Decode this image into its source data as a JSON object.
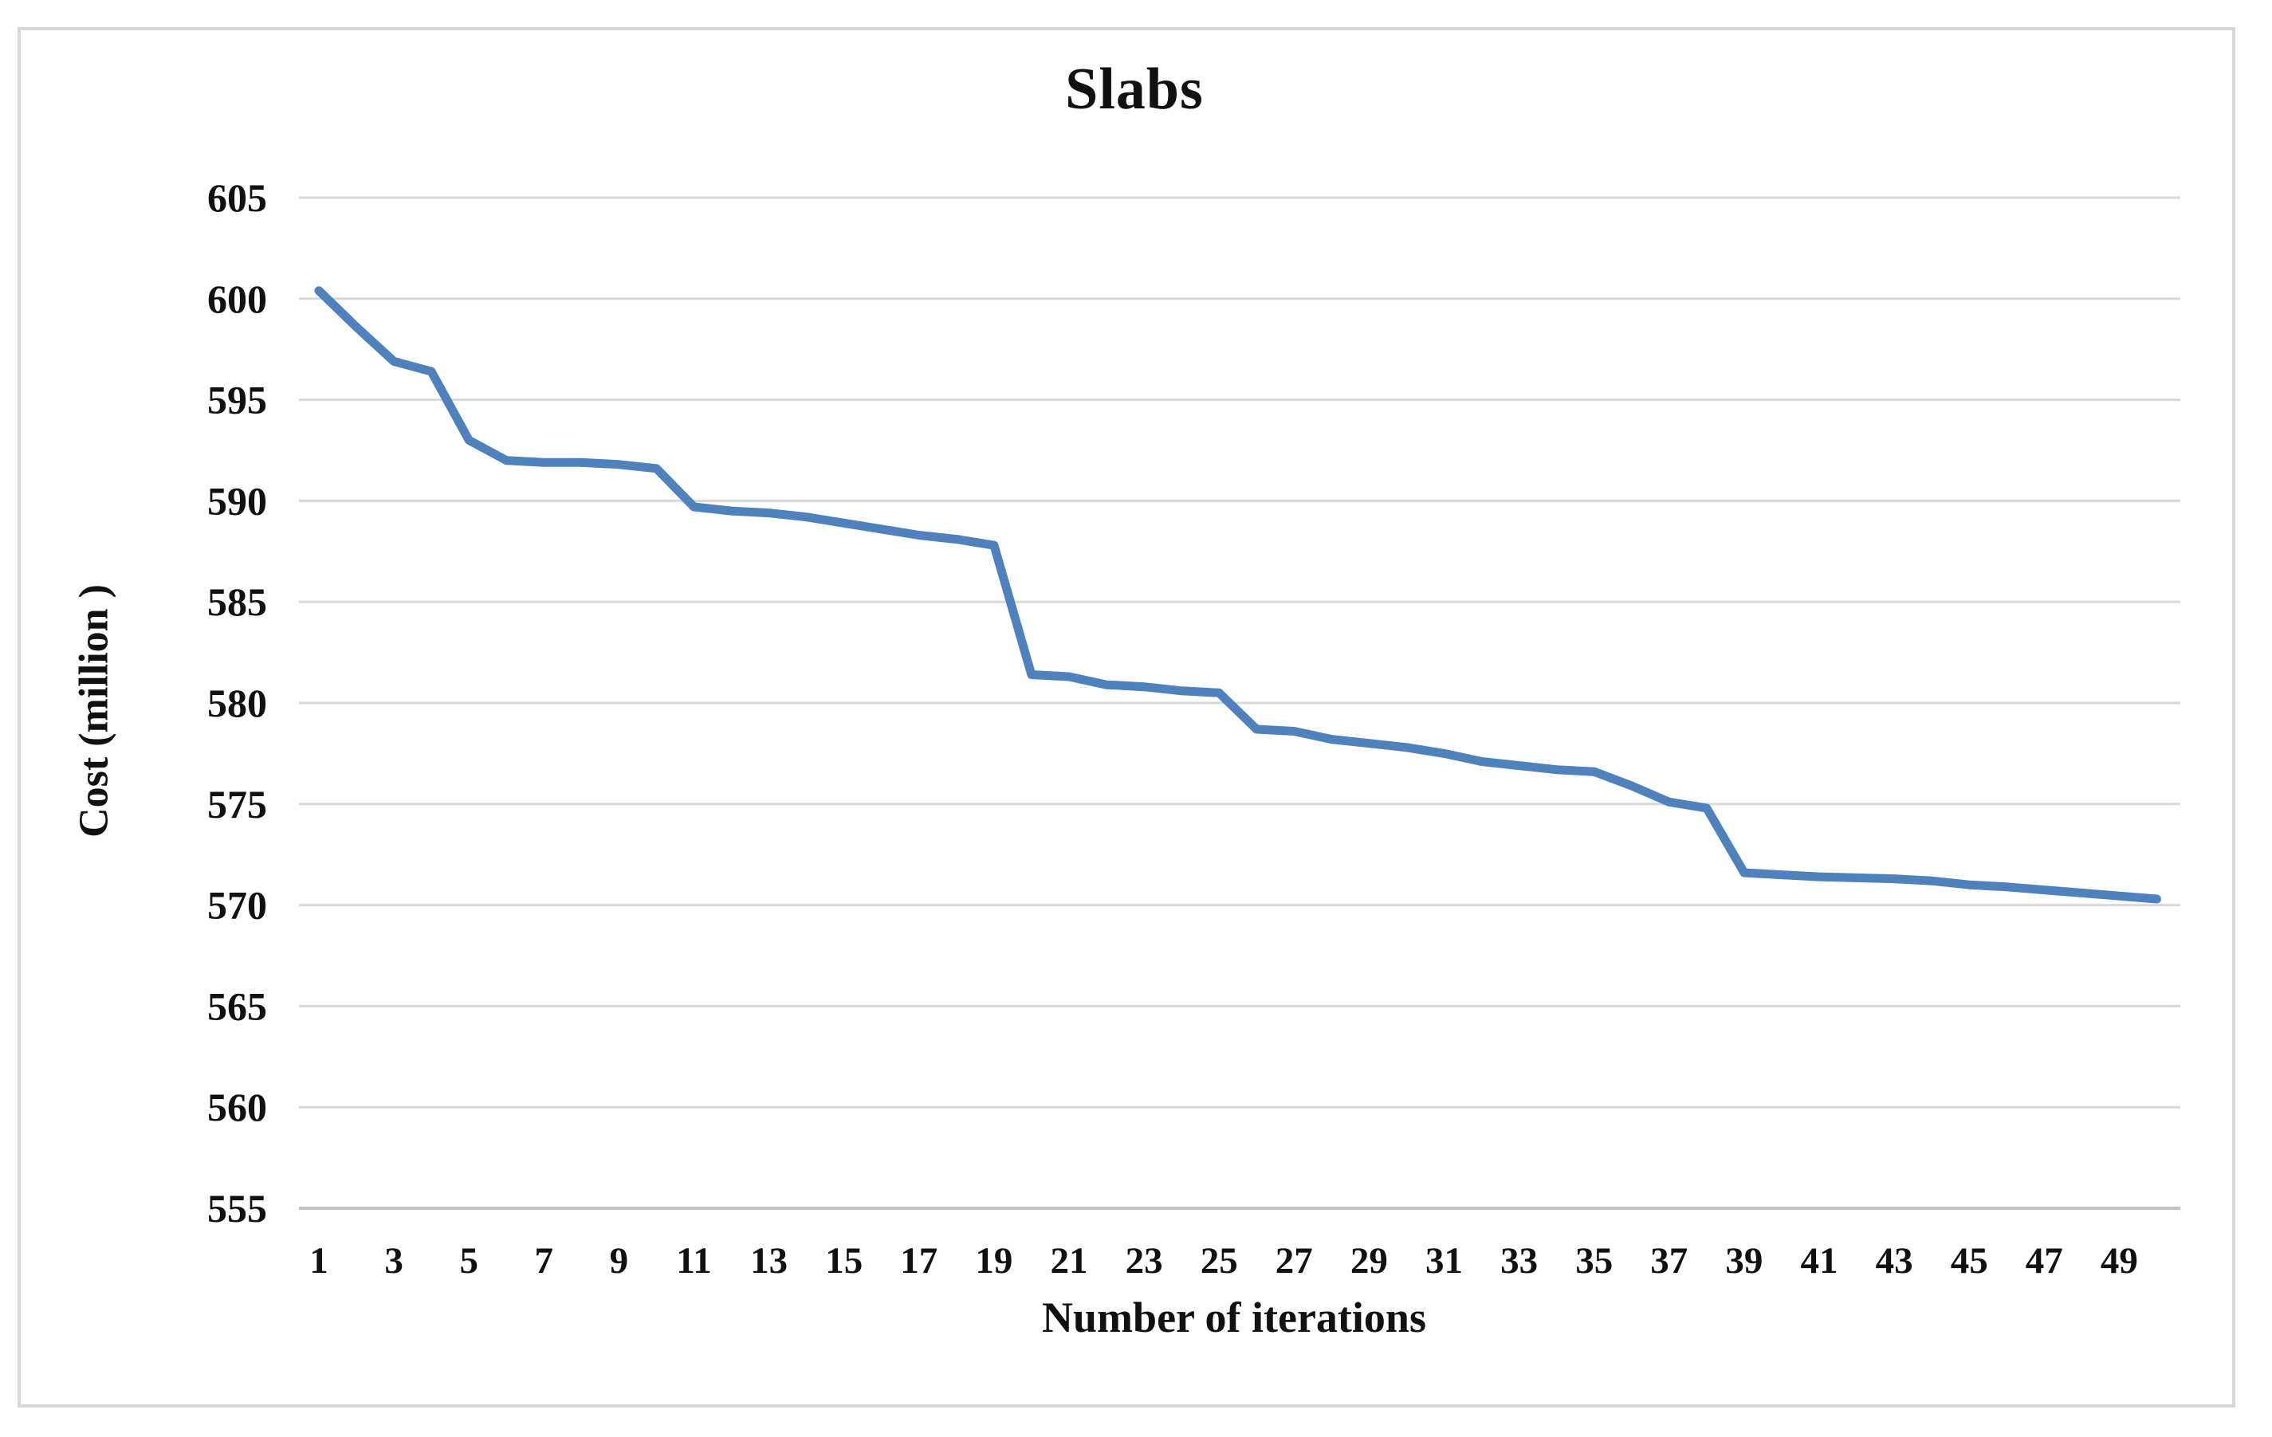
{
  "title": "Slabs",
  "y_axis": {
    "label": "Cost (million )"
  },
  "x_axis": {
    "label": "Number of iterations"
  },
  "colors": {
    "line": "#4F81BD",
    "gridline": "#d9d9d9",
    "axis_line": "#c3c3c3",
    "text": "#111111",
    "border": "#d7d7d7",
    "background": "#ffffff"
  },
  "chart_data": {
    "type": "line",
    "title": "Slabs",
    "xlabel": "Number of iterations",
    "ylabel": "Cost (million )",
    "ylim": [
      555,
      605
    ],
    "y_ticks": [
      605,
      600,
      595,
      590,
      585,
      580,
      575,
      570,
      565,
      560,
      555
    ],
    "x_ticks": [
      1,
      3,
      5,
      7,
      9,
      11,
      13,
      15,
      17,
      19,
      21,
      23,
      25,
      27,
      29,
      31,
      33,
      35,
      37,
      39,
      41,
      43,
      45,
      47,
      49
    ],
    "grid": "horizontal",
    "legend_position": "none",
    "x": [
      1,
      2,
      3,
      4,
      5,
      6,
      7,
      8,
      9,
      10,
      11,
      12,
      13,
      14,
      15,
      16,
      17,
      18,
      19,
      20,
      21,
      22,
      23,
      24,
      25,
      26,
      27,
      28,
      29,
      30,
      31,
      32,
      33,
      34,
      35,
      36,
      37,
      38,
      39,
      40,
      41,
      42,
      43,
      44,
      45,
      46,
      47,
      48,
      49,
      50
    ],
    "values": [
      600.4,
      598.6,
      596.9,
      596.4,
      593.0,
      592.0,
      591.9,
      591.9,
      591.8,
      591.6,
      589.7,
      589.5,
      589.4,
      589.2,
      588.9,
      588.6,
      588.3,
      588.1,
      587.8,
      581.4,
      581.3,
      580.9,
      580.8,
      580.6,
      580.5,
      578.7,
      578.6,
      578.2,
      578.0,
      577.8,
      577.5,
      577.1,
      576.9,
      576.7,
      576.6,
      575.9,
      575.1,
      574.8,
      571.6,
      571.5,
      571.4,
      571.35,
      571.3,
      571.2,
      571.0,
      570.9,
      570.75,
      570.6,
      570.45,
      570.3
    ]
  }
}
